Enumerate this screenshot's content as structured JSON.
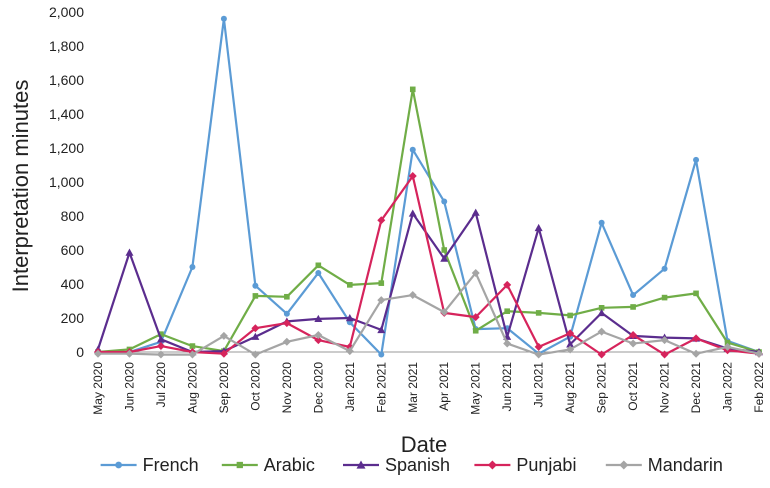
{
  "chart_data": {
    "type": "line",
    "xlabel": "Date",
    "ylabel": "Interpretation minutes",
    "ylim": [
      0,
      2000
    ],
    "yticks": [
      0,
      200,
      400,
      600,
      800,
      1000,
      1200,
      1400,
      1600,
      1800,
      2000
    ],
    "ytick_labels": [
      "0",
      "200",
      "400",
      "600",
      "800",
      "1,000",
      "1,200",
      "1,400",
      "1,600",
      "1,800",
      "2,000"
    ],
    "grid": false,
    "legend_position": "bottom",
    "categories": [
      "May 2020",
      "Jun 2020",
      "Jul 2020",
      "Aug 2020",
      "Sep 2020",
      "Oct 2020",
      "Nov 2020",
      "Dec 2020",
      "Jan 2021",
      "Feb 2021",
      "Mar 2021",
      "Apr 2021",
      "May 2021",
      "Jun 2021",
      "Jul 2021",
      "Aug 2021",
      "Sep 2021",
      "Oct 2021",
      "Nov 2021",
      "Dec 2021",
      "Jan 2022",
      "Feb 2022"
    ],
    "series": [
      {
        "name": "French",
        "color": "#5b9bd5",
        "marker": "circle",
        "values": [
          0,
          0,
          60,
          500,
          1960,
          390,
          225,
          465,
          175,
          -15,
          1190,
          885,
          135,
          140,
          -10,
          90,
          760,
          335,
          490,
          1130,
          65,
          0
        ]
      },
      {
        "name": "Arabic",
        "color": "#70ad47",
        "marker": "square",
        "values": [
          0,
          15,
          105,
          35,
          5,
          330,
          325,
          510,
          395,
          405,
          1545,
          600,
          125,
          240,
          230,
          215,
          260,
          265,
          320,
          345,
          55,
          0
        ]
      },
      {
        "name": "Spanish",
        "color": "#5b2d8e",
        "marker": "triangle",
        "values": [
          15,
          585,
          75,
          0,
          5,
          90,
          180,
          195,
          200,
          130,
          815,
          550,
          820,
          90,
          730,
          45,
          230,
          95,
          85,
          80,
          20,
          0
        ]
      },
      {
        "name": "Punjabi",
        "color": "#d6245c",
        "marker": "diamond",
        "values": [
          0,
          0,
          35,
          0,
          -10,
          140,
          170,
          70,
          30,
          775,
          1035,
          230,
          205,
          395,
          30,
          110,
          -15,
          100,
          -15,
          80,
          10,
          -10
        ]
      },
      {
        "name": "Mandarin",
        "color": "#a5a5a5",
        "marker": "diamond",
        "values": [
          -10,
          -10,
          -15,
          -15,
          95,
          -15,
          60,
          100,
          5,
          305,
          335,
          235,
          465,
          50,
          -15,
          15,
          120,
          50,
          70,
          -10,
          30,
          -10
        ]
      }
    ]
  }
}
